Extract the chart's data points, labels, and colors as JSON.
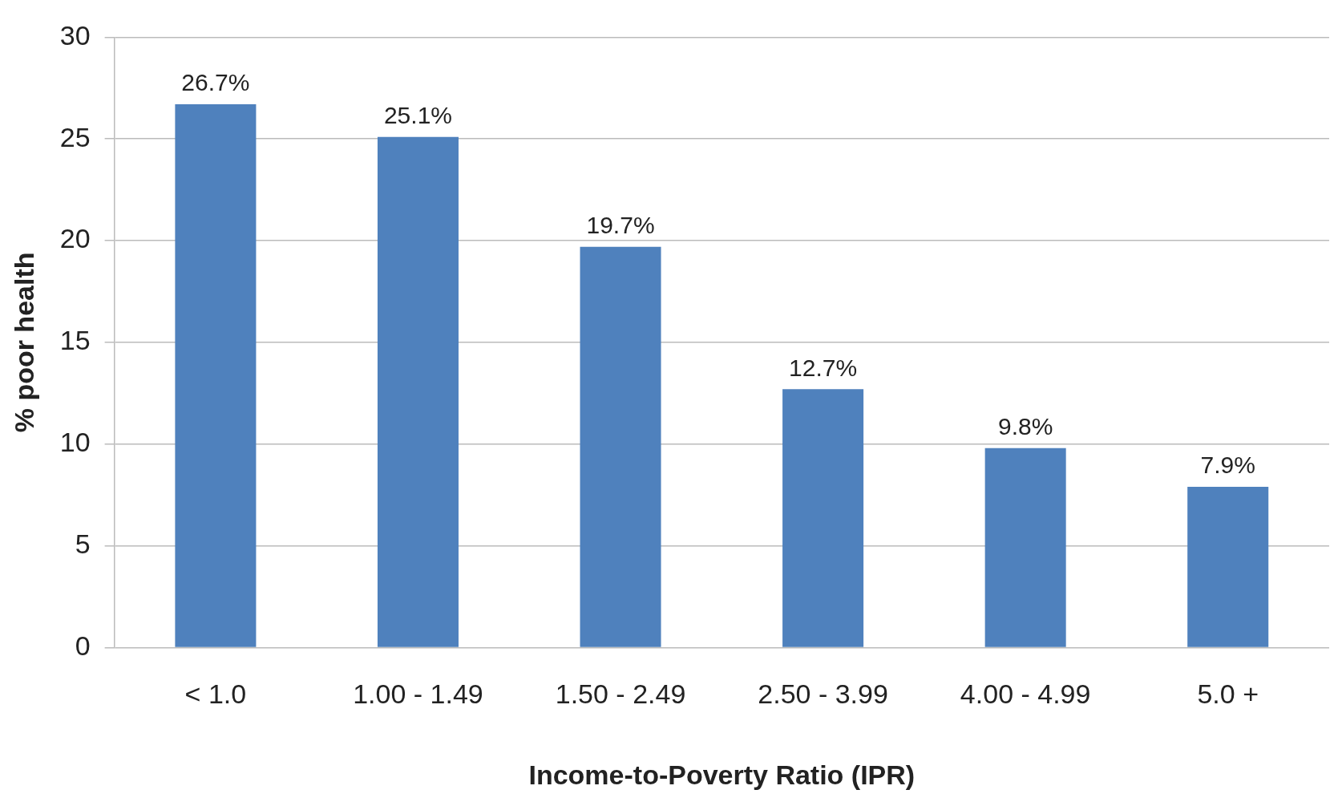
{
  "chart_data": {
    "type": "bar",
    "xlabel": "Income-to-Poverty Ratio (IPR)",
    "ylabel": "% poor health",
    "categories": [
      "< 1.0",
      "1.00 - 1.49",
      "1.50 - 2.49",
      "2.50 - 3.99",
      "4.00 - 4.99",
      "5.0 +"
    ],
    "values": [
      26.7,
      25.1,
      19.7,
      12.7,
      9.8,
      7.9
    ],
    "value_labels": [
      "26.7%",
      "25.1%",
      "19.7%",
      "12.7%",
      "9.8%",
      "7.9%"
    ],
    "color": "#4f81bd",
    "ylim": [
      0,
      30
    ],
    "yticks": [
      0,
      5,
      10,
      15,
      20,
      25,
      30
    ],
    "grid": "y",
    "legend": false
  }
}
